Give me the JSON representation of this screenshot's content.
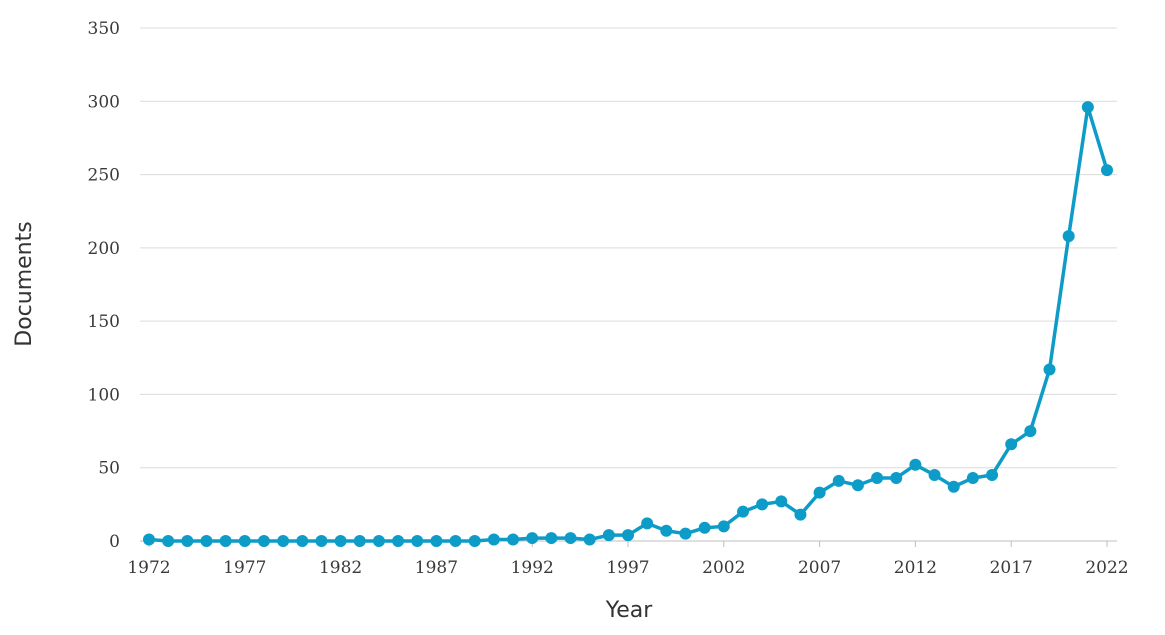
{
  "chart_data": {
    "type": "line",
    "xlabel": "Year",
    "ylabel": "Documents",
    "ylim": [
      0,
      350
    ],
    "xlim": [
      1972,
      2022
    ],
    "y_ticks": [
      0,
      50,
      100,
      150,
      200,
      250,
      300,
      350
    ],
    "x_ticks": [
      1972,
      1977,
      1982,
      1987,
      1992,
      1997,
      2002,
      2007,
      2012,
      2017,
      2022
    ],
    "grid": "horizontal",
    "legend": "none",
    "colors": {
      "series": "#0d9cc8",
      "grid": "#dcdcdc",
      "text": "#3a3a3a"
    },
    "series": [
      {
        "x": [
          1972,
          1973,
          1974,
          1975,
          1976,
          1977,
          1978,
          1979,
          1980,
          1981,
          1982,
          1983,
          1984,
          1985,
          1986,
          1987,
          1988,
          1989,
          1990,
          1991,
          1992,
          1993,
          1994,
          1995,
          1996,
          1997,
          1998,
          1999,
          2000,
          2001,
          2002,
          2003,
          2004,
          2005,
          2006,
          2007,
          2008,
          2009,
          2010,
          2011,
          2012,
          2013,
          2014,
          2015,
          2016,
          2017,
          2018,
          2019,
          2020,
          2021,
          2022
        ],
        "values": [
          1,
          0,
          0,
          0,
          0,
          0,
          0,
          0,
          0,
          0,
          0,
          0,
          0,
          0,
          0,
          0,
          0,
          0,
          1,
          1,
          2,
          2,
          2,
          1,
          4,
          4,
          12,
          7,
          5,
          9,
          10,
          20,
          25,
          27,
          18,
          33,
          41,
          38,
          43,
          43,
          52,
          45,
          37,
          43,
          45,
          66,
          75,
          117,
          208,
          296,
          253
        ]
      }
    ]
  }
}
